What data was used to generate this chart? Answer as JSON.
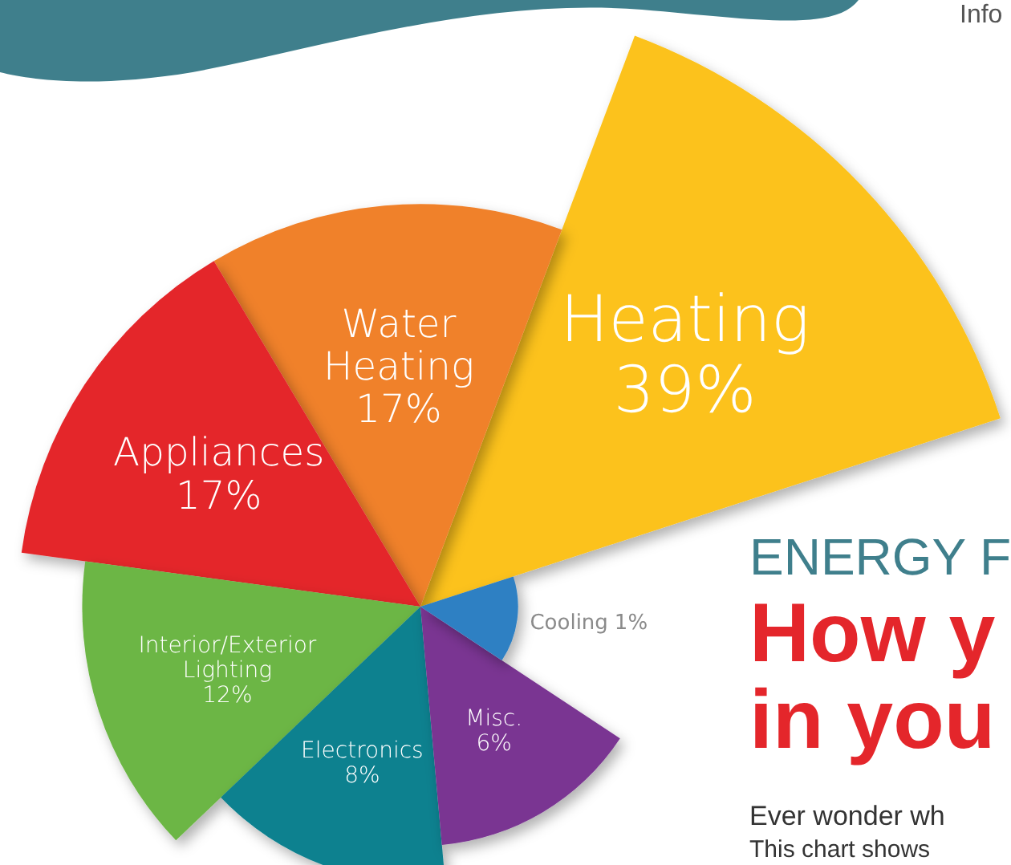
{
  "chart_data": {
    "type": "other",
    "categories": [
      "Heating",
      "Water\nHeating",
      "Appliances",
      "Interior/Exterior\nLighting",
      "Electronics",
      "Misc.",
      "Cooling"
    ],
    "values": [
      39,
      17,
      17,
      12,
      8,
      6,
      1
    ],
    "value_labels": [
      "39%",
      "17%",
      "17%",
      "12%",
      "8%",
      "6%",
      "1%"
    ],
    "colors": [
      "#fcc21b",
      "#f0812b",
      "#e4262b",
      "#6cb644",
      "#10818f",
      "#7a3592",
      "#2f80c3"
    ],
    "annotations": [
      "Info",
      "ENERGY F",
      "How y",
      "in you",
      "Ever wonder wh",
      "This chart shows"
    ]
  }
}
